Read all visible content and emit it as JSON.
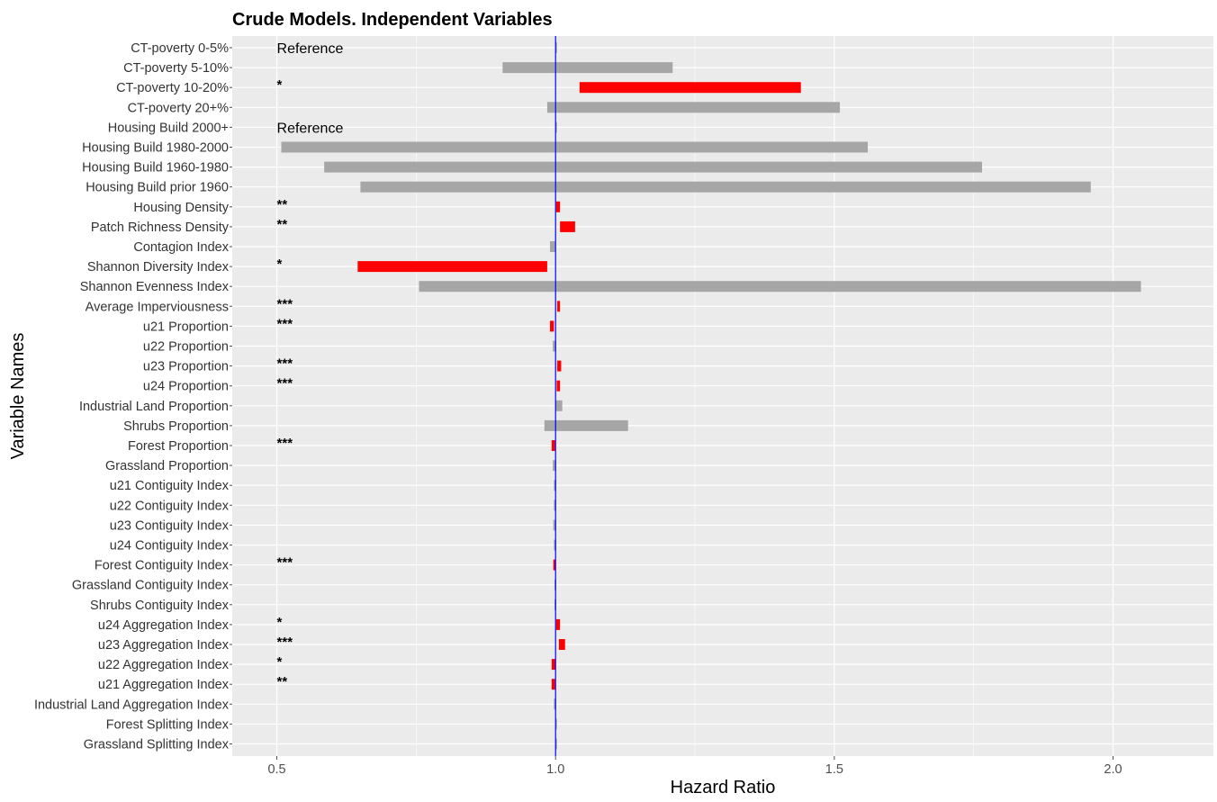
{
  "chart_data": {
    "type": "bar",
    "title": "Crude Models. Independent Variables",
    "xlabel": "Hazard Ratio",
    "ylabel": "Variable Names",
    "xlim": [
      0.42,
      2.18
    ],
    "x_ticks": [
      {
        "value": 0.5,
        "label": "0.5"
      },
      {
        "value": 1.0,
        "label": "1.0"
      },
      {
        "value": 1.5,
        "label": "1.5"
      },
      {
        "value": 2.0,
        "label": "2.0"
      }
    ],
    "reference_line": 1.0,
    "grid": true,
    "significant_color": "#ff0000",
    "nonsignificant_color": "#a6a6a6",
    "reference_line_color": "#0000ff",
    "panel_background": "#ebebeb",
    "categories": [
      "CT-poverty 0-5%",
      "CT-poverty 5-10%",
      "CT-poverty 10-20%",
      "CT-poverty 20+%",
      "Housing Build 2000+",
      "Housing Build 1980-2000",
      "Housing Build 1960-1980",
      "Housing Build prior 1960",
      "Housing Density",
      "Patch Richness Density",
      "Contagion Index",
      "Shannon Diversity Index",
      "Shannon Evenness Index",
      "Average Imperviousness",
      "u21 Proportion",
      "u22 Proportion",
      "u23 Proportion",
      "u24 Proportion",
      "Industrial Land Proportion",
      "Shrubs Proportion",
      "Forest Proportion",
      "Grassland Proportion",
      "u21 Contiguity Index",
      "u22 Contiguity Index",
      "u23 Contiguity Index",
      "u24 Contiguity Index",
      "Forest  Contiguity Index",
      "Grassland  Contiguity Index",
      "Shrubs  Contiguity Index",
      "u24 Aggregation Index",
      "u23 Aggregation Index",
      "u22 Aggregation Index",
      "u21 Aggregation Index",
      "Industrial Land Aggregation Index",
      "Forest Splitting Index",
      "Grassland Splitting Index"
    ],
    "ranges": [
      {
        "low": 1.0,
        "high": 1.0,
        "significant": false,
        "annotation": "Reference"
      },
      {
        "low": 0.905,
        "high": 1.21,
        "significant": false,
        "annotation": ""
      },
      {
        "low": 1.043,
        "high": 1.44,
        "significant": true,
        "annotation": "*"
      },
      {
        "low": 0.985,
        "high": 1.51,
        "significant": false,
        "annotation": ""
      },
      {
        "low": 1.0,
        "high": 1.0,
        "significant": false,
        "annotation": "Reference"
      },
      {
        "low": 0.508,
        "high": 1.56,
        "significant": false,
        "annotation": ""
      },
      {
        "low": 0.585,
        "high": 1.765,
        "significant": false,
        "annotation": ""
      },
      {
        "low": 0.65,
        "high": 1.96,
        "significant": false,
        "annotation": ""
      },
      {
        "low": 1.001,
        "high": 1.008,
        "significant": true,
        "annotation": "**"
      },
      {
        "low": 1.008,
        "high": 1.035,
        "significant": true,
        "annotation": "**"
      },
      {
        "low": 0.99,
        "high": 1.0,
        "significant": false,
        "annotation": ""
      },
      {
        "low": 0.645,
        "high": 0.985,
        "significant": true,
        "annotation": "*"
      },
      {
        "low": 0.755,
        "high": 2.05,
        "significant": false,
        "annotation": ""
      },
      {
        "low": 1.003,
        "high": 1.008,
        "significant": true,
        "annotation": "***"
      },
      {
        "low": 0.99,
        "high": 0.997,
        "significant": true,
        "annotation": "***"
      },
      {
        "low": 0.995,
        "high": 1.001,
        "significant": false,
        "annotation": ""
      },
      {
        "low": 1.003,
        "high": 1.01,
        "significant": true,
        "annotation": "***"
      },
      {
        "low": 1.002,
        "high": 1.008,
        "significant": true,
        "annotation": "***"
      },
      {
        "low": 1.0,
        "high": 1.012,
        "significant": false,
        "annotation": ""
      },
      {
        "low": 0.98,
        "high": 1.13,
        "significant": false,
        "annotation": ""
      },
      {
        "low": 0.993,
        "high": 0.999,
        "significant": true,
        "annotation": "***"
      },
      {
        "low": 0.995,
        "high": 1.001,
        "significant": false,
        "annotation": ""
      },
      {
        "low": 0.997,
        "high": 1.001,
        "significant": false,
        "annotation": ""
      },
      {
        "low": 0.997,
        "high": 1.001,
        "significant": false,
        "annotation": ""
      },
      {
        "low": 0.996,
        "high": 1.001,
        "significant": false,
        "annotation": ""
      },
      {
        "low": 0.997,
        "high": 1.001,
        "significant": false,
        "annotation": ""
      },
      {
        "low": 0.996,
        "high": 1.0,
        "significant": true,
        "annotation": "***"
      },
      {
        "low": 0.998,
        "high": 1.001,
        "significant": false,
        "annotation": ""
      },
      {
        "low": 0.998,
        "high": 1.001,
        "significant": false,
        "annotation": ""
      },
      {
        "low": 1.001,
        "high": 1.008,
        "significant": true,
        "annotation": "*"
      },
      {
        "low": 1.006,
        "high": 1.017,
        "significant": true,
        "annotation": "***"
      },
      {
        "low": 0.993,
        "high": 1.0,
        "significant": true,
        "annotation": "*"
      },
      {
        "low": 0.993,
        "high": 0.999,
        "significant": true,
        "annotation": "**"
      },
      {
        "low": 0.997,
        "high": 1.001,
        "significant": false,
        "annotation": ""
      },
      {
        "low": 1.0,
        "high": 1.0,
        "significant": false,
        "annotation": ""
      },
      {
        "low": 1.0,
        "high": 1.0,
        "significant": false,
        "annotation": ""
      }
    ]
  }
}
